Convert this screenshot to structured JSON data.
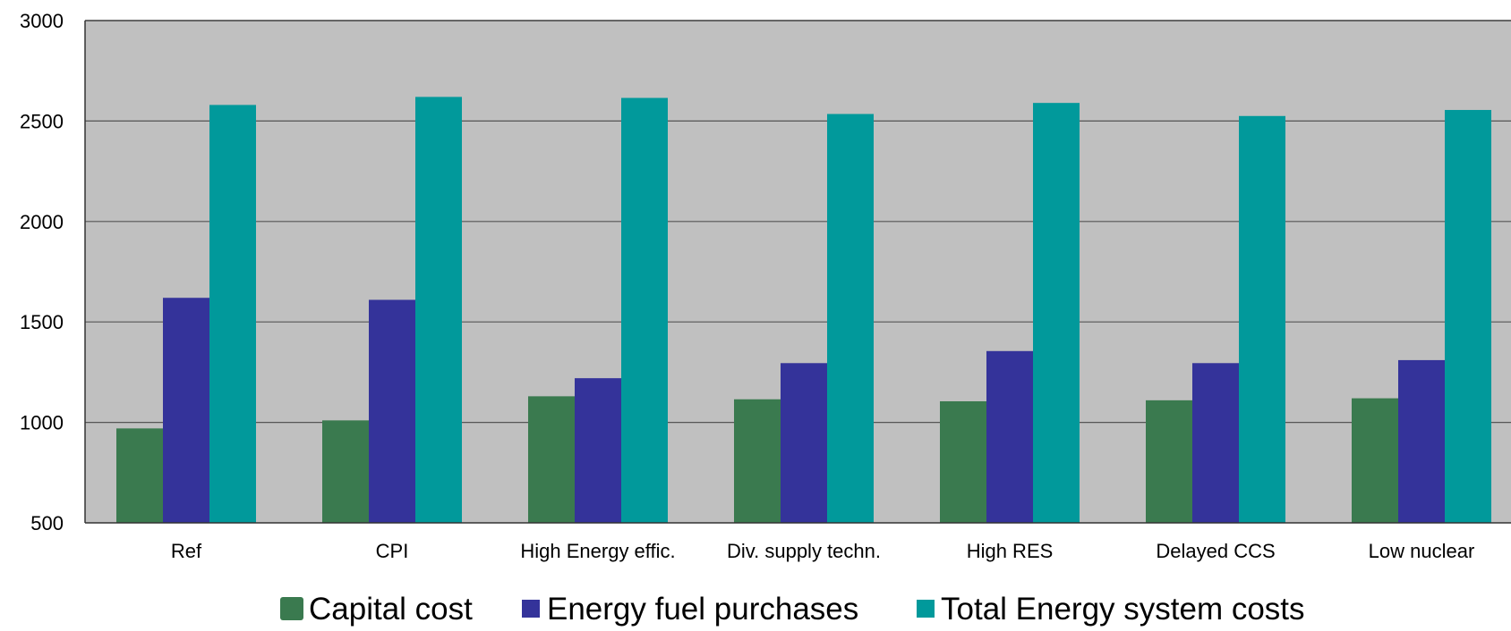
{
  "chart_data": {
    "type": "bar",
    "title": "",
    "xlabel": "",
    "ylabel": "",
    "ylim": [
      500,
      3000
    ],
    "yticks": [
      500,
      1000,
      1500,
      2000,
      2500,
      3000
    ],
    "categories": [
      "Ref",
      "CPI",
      "High Energy effic.",
      "Div. supply techn.",
      "High RES",
      "Delayed CCS",
      "Low nuclear"
    ],
    "series": [
      {
        "name": "Capital cost",
        "color": "#3a7a4f",
        "values": [
          970,
          1010,
          1130,
          1115,
          1105,
          1110,
          1120
        ]
      },
      {
        "name": "Energy fuel purchases",
        "color": "#34339a",
        "values": [
          1620,
          1610,
          1220,
          1295,
          1355,
          1295,
          1310
        ]
      },
      {
        "name": "Total Energy system costs",
        "color": "#01999b",
        "values": [
          2580,
          2620,
          2615,
          2535,
          2590,
          2525,
          2555
        ]
      }
    ],
    "grid": true,
    "plot_background": "#c0c0c0",
    "legend_position": "bottom"
  }
}
